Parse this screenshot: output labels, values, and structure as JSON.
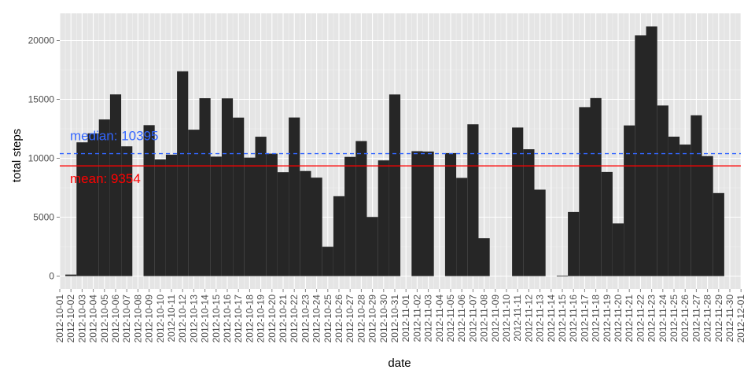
{
  "chart_data": {
    "type": "bar",
    "xlabel": "date",
    "ylabel": "total steps",
    "ylim": [
      -1100,
      22300
    ],
    "y_ticks": [
      0,
      5000,
      10000,
      15000,
      20000
    ],
    "y_tick_labels": [
      "0",
      "5000",
      "10000",
      "15000",
      "20000"
    ],
    "grid": true,
    "background_color": "#e5e5e5",
    "grid_color": "#ffffff",
    "bar_color": "#262626",
    "x_tick_labels": [
      "2012-10-01",
      "2012-10-02",
      "2012-10-03",
      "2012-10-04",
      "2012-10-05",
      "2012-10-06",
      "2012-10-07",
      "2012-10-08",
      "2012-10-09",
      "2012-10-10",
      "2012-10-11",
      "2012-10-12",
      "2012-10-13",
      "2012-10-14",
      "2012-10-15",
      "2012-10-16",
      "2012-10-17",
      "2012-10-18",
      "2012-10-19",
      "2012-10-20",
      "2012-10-21",
      "2012-10-22",
      "2012-10-23",
      "2012-10-24",
      "2012-10-25",
      "2012-10-26",
      "2012-10-27",
      "2012-10-28",
      "2012-10-29",
      "2012-10-30",
      "2012-10-31",
      "2012-11-01",
      "2012-11-02",
      "2012-11-03",
      "2012-11-04",
      "2012-11-05",
      "2012-11-06",
      "2012-11-07",
      "2012-11-08",
      "2012-11-09",
      "2012-11-10",
      "2012-11-11",
      "2012-11-12",
      "2012-11-13",
      "2012-11-14",
      "2012-11-15",
      "2012-11-16",
      "2012-11-17",
      "2012-11-18",
      "2012-11-19",
      "2012-11-20",
      "2012-11-21",
      "2012-11-22",
      "2012-11-23",
      "2012-11-24",
      "2012-11-25",
      "2012-11-26",
      "2012-11-27",
      "2012-11-28",
      "2012-11-29",
      "2012-11-30",
      "2012-12-01"
    ],
    "bars": [
      {
        "x": "2012-10-02",
        "y": 126
      },
      {
        "x": "2012-10-03",
        "y": 11352
      },
      {
        "x": "2012-10-04",
        "y": 12116
      },
      {
        "x": "2012-10-05",
        "y": 13294
      },
      {
        "x": "2012-10-06",
        "y": 15420
      },
      {
        "x": "2012-10-07",
        "y": 11015
      },
      {
        "x": "2012-10-09",
        "y": 12811
      },
      {
        "x": "2012-10-10",
        "y": 9900
      },
      {
        "x": "2012-10-11",
        "y": 10304
      },
      {
        "x": "2012-10-12",
        "y": 17382
      },
      {
        "x": "2012-10-13",
        "y": 12426
      },
      {
        "x": "2012-10-14",
        "y": 15098
      },
      {
        "x": "2012-10-15",
        "y": 10139
      },
      {
        "x": "2012-10-16",
        "y": 15084
      },
      {
        "x": "2012-10-17",
        "y": 13452
      },
      {
        "x": "2012-10-18",
        "y": 10056
      },
      {
        "x": "2012-10-19",
        "y": 11829
      },
      {
        "x": "2012-10-20",
        "y": 10395
      },
      {
        "x": "2012-10-21",
        "y": 8821
      },
      {
        "x": "2012-10-22",
        "y": 13460
      },
      {
        "x": "2012-10-23",
        "y": 8918
      },
      {
        "x": "2012-10-24",
        "y": 8355
      },
      {
        "x": "2012-10-25",
        "y": 2492
      },
      {
        "x": "2012-10-26",
        "y": 6778
      },
      {
        "x": "2012-10-27",
        "y": 10119
      },
      {
        "x": "2012-10-28",
        "y": 11458
      },
      {
        "x": "2012-10-29",
        "y": 5018
      },
      {
        "x": "2012-10-30",
        "y": 9819
      },
      {
        "x": "2012-10-31",
        "y": 15414
      },
      {
        "x": "2012-11-02",
        "y": 10600
      },
      {
        "x": "2012-11-03",
        "y": 10571
      },
      {
        "x": "2012-11-05",
        "y": 10439
      },
      {
        "x": "2012-11-06",
        "y": 8334
      },
      {
        "x": "2012-11-07",
        "y": 12883
      },
      {
        "x": "2012-11-08",
        "y": 3219
      },
      {
        "x": "2012-11-11",
        "y": 12608
      },
      {
        "x": "2012-11-12",
        "y": 10765
      },
      {
        "x": "2012-11-13",
        "y": 7336
      },
      {
        "x": "2012-11-15",
        "y": 41
      },
      {
        "x": "2012-11-16",
        "y": 5441
      },
      {
        "x": "2012-11-17",
        "y": 14339
      },
      {
        "x": "2012-11-18",
        "y": 15110
      },
      {
        "x": "2012-11-19",
        "y": 8841
      },
      {
        "x": "2012-11-20",
        "y": 4472
      },
      {
        "x": "2012-11-21",
        "y": 12787
      },
      {
        "x": "2012-11-22",
        "y": 20427
      },
      {
        "x": "2012-11-23",
        "y": 21194
      },
      {
        "x": "2012-11-24",
        "y": 14478
      },
      {
        "x": "2012-11-25",
        "y": 11834
      },
      {
        "x": "2012-11-26",
        "y": 11162
      },
      {
        "x": "2012-11-27",
        "y": 13646
      },
      {
        "x": "2012-11-28",
        "y": 10183
      },
      {
        "x": "2012-11-29",
        "y": 7047
      }
    ],
    "reference_lines": [
      {
        "name": "median",
        "value": 10395,
        "label": "median:  10395",
        "color": "#3366ff",
        "style": "dashed"
      },
      {
        "name": "mean",
        "value": 9354,
        "label": "mean:  9354",
        "color": "#ff0000",
        "style": "solid"
      }
    ]
  }
}
